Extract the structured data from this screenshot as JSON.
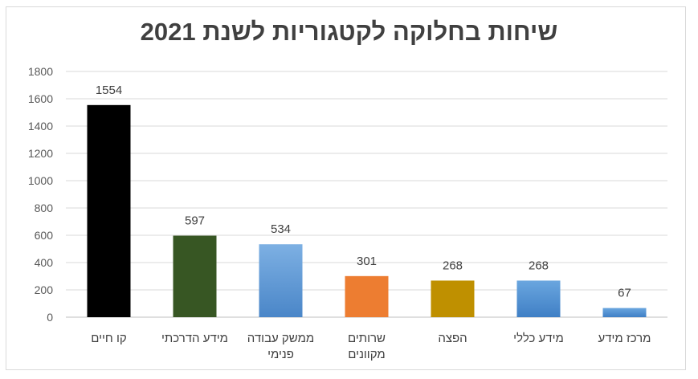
{
  "chart_data": {
    "type": "bar",
    "title": "שיחות בחלוקה לקטגוריות לשנת 2021",
    "xlabel": "",
    "ylabel": "",
    "ylim": [
      0,
      1800
    ],
    "yticks": [
      0,
      200,
      400,
      600,
      800,
      1000,
      1200,
      1400,
      1600,
      1800
    ],
    "grid": true,
    "legend": "none",
    "categories": [
      [
        "קו חיים"
      ],
      [
        "מידע הדרכתי"
      ],
      [
        "ממשק עבודה",
        "פנימי"
      ],
      [
        "שרותים",
        "מקוונים"
      ],
      [
        "הפצה"
      ],
      [
        "מידע כללי"
      ],
      [
        "מרכז מידע"
      ]
    ],
    "values": [
      1554,
      597,
      534,
      301,
      268,
      268,
      67
    ],
    "colors": [
      "#000000",
      "#375623",
      "#6fa8dc",
      "#ed7d31",
      "#bf9000",
      "#5b9bd5",
      "#5b9bd5"
    ],
    "data_labels": true
  }
}
